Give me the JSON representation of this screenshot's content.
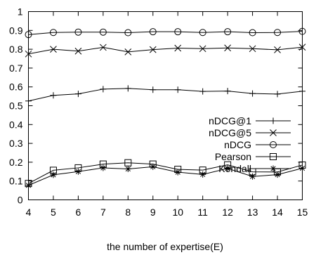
{
  "chart_data": {
    "type": "line",
    "title": "",
    "xlabel": "the number of expertise(E)",
    "ylabel": "",
    "xlim": [
      4,
      15
    ],
    "ylim": [
      0,
      1
    ],
    "x": [
      4,
      5,
      6,
      7,
      8,
      9,
      10,
      11,
      12,
      13,
      14,
      15
    ],
    "xticks": [
      4,
      5,
      6,
      7,
      8,
      9,
      10,
      11,
      12,
      13,
      14,
      15
    ],
    "yticks": [
      0,
      0.1,
      0.2,
      0.3,
      0.4,
      0.5,
      0.6,
      0.7,
      0.8,
      0.9,
      1
    ],
    "ytick_labels": [
      "0",
      "0.1",
      "0.2",
      "0.3",
      "0.4",
      "0.5",
      "0.6",
      "0.7",
      "0.8",
      "0.9",
      "1"
    ],
    "grid": false,
    "legend_position": "right, lower-middle",
    "series": [
      {
        "name": "nDCG@1",
        "marker": "plus",
        "values": [
          0.525,
          0.555,
          0.563,
          0.588,
          0.592,
          0.585,
          0.585,
          0.576,
          0.578,
          0.565,
          0.562,
          0.577
        ]
      },
      {
        "name": "nDCG@5",
        "marker": "cross",
        "values": [
          0.775,
          0.8,
          0.79,
          0.81,
          0.786,
          0.798,
          0.806,
          0.803,
          0.807,
          0.803,
          0.797,
          0.811
        ]
      },
      {
        "name": "nDCG",
        "marker": "circle",
        "values": [
          0.878,
          0.889,
          0.891,
          0.891,
          0.888,
          0.893,
          0.893,
          0.889,
          0.893,
          0.888,
          0.889,
          0.895
        ]
      },
      {
        "name": "Pearson",
        "marker": "square",
        "values": [
          0.087,
          0.157,
          0.17,
          0.19,
          0.197,
          0.19,
          0.162,
          0.158,
          0.186,
          0.149,
          0.148,
          0.185
        ]
      },
      {
        "name": "Kendall",
        "marker": "asterisk",
        "values": [
          0.077,
          0.133,
          0.15,
          0.17,
          0.164,
          0.176,
          0.147,
          0.135,
          0.167,
          0.124,
          0.134,
          0.168
        ]
      }
    ]
  }
}
